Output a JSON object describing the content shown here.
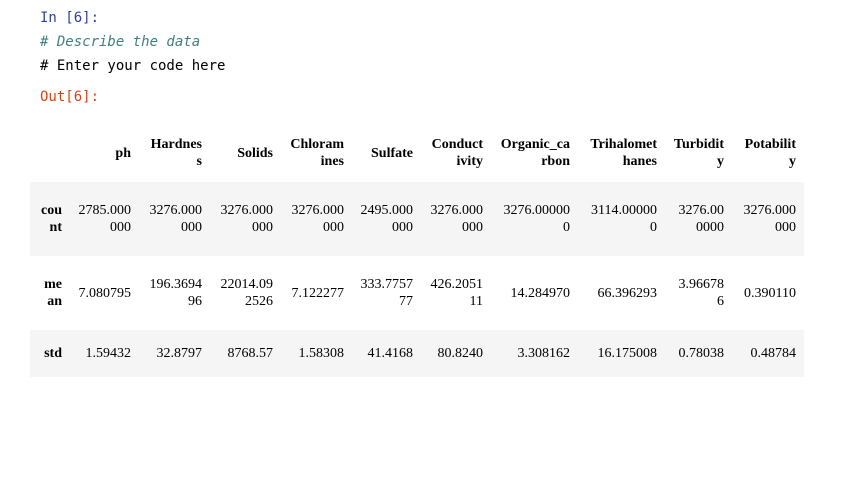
{
  "cell": {
    "in_prompt": "In [6]:",
    "comment_line": "# Describe the data",
    "code_line": "# Enter your code here",
    "out_prompt": "Out[6]:"
  },
  "table": {
    "columns": [
      "",
      "ph",
      "Hardness",
      "Solids",
      "Chloramines",
      "Sulfate",
      "Conductivity",
      "Organic_carbon",
      "Trihalomethanes",
      "Turbidity",
      "Potability"
    ],
    "rows": [
      {
        "label": "count",
        "values": [
          "2785.000000",
          "3276.000000",
          "3276.000000",
          "3276.000000",
          "2495.000000",
          "3276.000000",
          "3276.000000",
          "3114.000000",
          "3276.000000",
          "3276.000000"
        ]
      },
      {
        "label": "mean",
        "values": [
          "7.080795",
          "196.369496",
          "22014.092526",
          "7.122277",
          "333.775777",
          "426.205111",
          "14.284970",
          "66.396293",
          "3.966786",
          "0.390110"
        ]
      },
      {
        "label": "std",
        "values": [
          "1.59432",
          "32.8797",
          "8768.57",
          "1.58308",
          "41.4168",
          "80.8240",
          "3.308162",
          "16.175008",
          "0.78038",
          "0.48784"
        ]
      }
    ]
  }
}
